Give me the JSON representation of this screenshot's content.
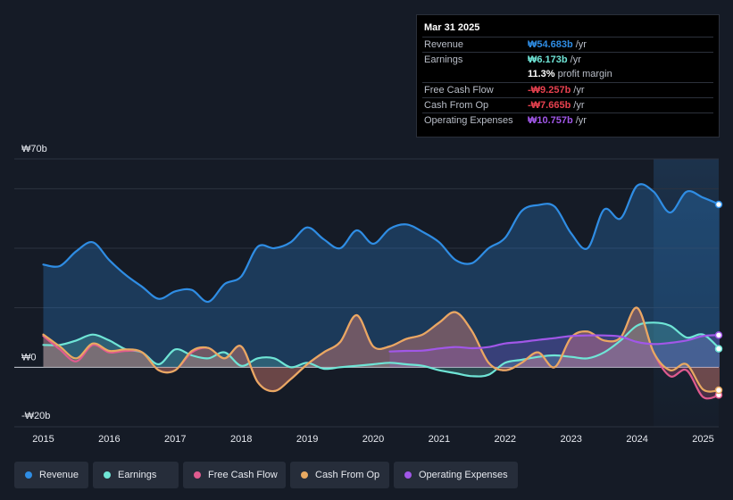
{
  "chart_data": {
    "type": "line",
    "title": "",
    "currency": "₩",
    "y_unit": "b",
    "ylim": [
      -20,
      70
    ],
    "y_tick_labels": [
      "₩70b",
      "₩0",
      "-₩20b"
    ],
    "x_tick_labels": [
      "2015",
      "2016",
      "2017",
      "2018",
      "2019",
      "2020",
      "2021",
      "2022",
      "2023",
      "2024",
      "2025"
    ],
    "xlim": [
      2014.95,
      2025.25
    ],
    "forecast_shade_from": 2024.25,
    "series": [
      {
        "name": "Revenue",
        "color": "#2f8de4",
        "fill": true,
        "x": [
          2015.0,
          2015.25,
          2015.5,
          2015.75,
          2016.0,
          2016.25,
          2016.5,
          2016.75,
          2017.0,
          2017.25,
          2017.5,
          2017.75,
          2018.0,
          2018.25,
          2018.5,
          2018.75,
          2019.0,
          2019.25,
          2019.5,
          2019.75,
          2020.0,
          2020.25,
          2020.5,
          2020.75,
          2021.0,
          2021.25,
          2021.5,
          2021.75,
          2022.0,
          2022.25,
          2022.5,
          2022.75,
          2023.0,
          2023.25,
          2023.5,
          2023.75,
          2024.0,
          2024.25,
          2024.5,
          2024.75,
          2025.0,
          2025.25
        ],
        "values": [
          34.5,
          34,
          39,
          42,
          36,
          31,
          27,
          23,
          25.5,
          26,
          22,
          28,
          30.5,
          40.5,
          40,
          42,
          47,
          43,
          40,
          46,
          41.5,
          46.5,
          48,
          45.5,
          42,
          36,
          35,
          40,
          43.5,
          52.5,
          54.5,
          54,
          45,
          40,
          53,
          50,
          61,
          59,
          52,
          59,
          57,
          54.7
        ]
      },
      {
        "name": "Earnings",
        "color": "#6fe5d6",
        "fill": true,
        "x": [
          2015.0,
          2015.25,
          2015.5,
          2015.75,
          2016.0,
          2016.25,
          2016.5,
          2016.75,
          2017.0,
          2017.25,
          2017.5,
          2017.75,
          2018.0,
          2018.25,
          2018.5,
          2018.75,
          2019.0,
          2019.25,
          2019.5,
          2019.75,
          2020.0,
          2020.25,
          2020.5,
          2020.75,
          2021.0,
          2021.25,
          2021.5,
          2021.75,
          2022.0,
          2022.25,
          2022.5,
          2022.75,
          2023.0,
          2023.25,
          2023.5,
          2023.75,
          2024.0,
          2024.25,
          2024.5,
          2024.75,
          2025.0,
          2025.25
        ],
        "values": [
          7.5,
          7.5,
          9,
          11,
          9,
          6,
          5,
          1,
          6,
          4,
          3,
          5,
          0.5,
          3,
          3,
          0,
          1.5,
          -0.5,
          0,
          0.5,
          1,
          1.5,
          1,
          0.5,
          -1,
          -2,
          -3,
          -2.5,
          1.5,
          2.5,
          3.5,
          4,
          3.5,
          3,
          5,
          9,
          14,
          15,
          14,
          10,
          11,
          6.2
        ]
      },
      {
        "name": "Free Cash Flow",
        "color": "#e05b8f",
        "fill": true,
        "x": [
          2015.0,
          2015.25,
          2015.5,
          2015.75,
          2016.0,
          2016.25,
          2016.5,
          2016.75,
          2017.0,
          2017.25,
          2017.5,
          2017.75,
          2018.0,
          2018.25,
          2018.5,
          2018.75,
          2019.0,
          2019.25,
          2019.5,
          2019.75,
          2020.0,
          2020.25,
          2020.5,
          2020.75,
          2021.0,
          2021.25,
          2021.5,
          2021.75,
          2022.0,
          2022.25,
          2022.5,
          2022.75,
          2023.0,
          2023.25,
          2023.5,
          2023.75,
          2024.0,
          2024.25,
          2024.5,
          2024.75,
          2025.0,
          2025.25
        ],
        "values": [
          10.5,
          6,
          2,
          7.5,
          5,
          5.5,
          5,
          -1,
          -1,
          5,
          6.5,
          3,
          7,
          -5,
          -8,
          -4,
          1,
          5,
          8.5,
          17.5,
          7,
          7,
          9.5,
          11,
          15,
          18.5,
          12,
          1.5,
          -1,
          1.5,
          5,
          0,
          10,
          12,
          9,
          10,
          20,
          5,
          -3,
          -1,
          -10,
          -9.3
        ]
      },
      {
        "name": "Cash From Op",
        "color": "#e8a961",
        "fill": true,
        "x": [
          2015.0,
          2015.25,
          2015.5,
          2015.75,
          2016.0,
          2016.25,
          2016.5,
          2016.75,
          2017.0,
          2017.25,
          2017.5,
          2017.75,
          2018.0,
          2018.25,
          2018.5,
          2018.75,
          2019.0,
          2019.25,
          2019.5,
          2019.75,
          2020.0,
          2020.25,
          2020.5,
          2020.75,
          2021.0,
          2021.25,
          2021.5,
          2021.75,
          2022.0,
          2022.25,
          2022.5,
          2022.75,
          2023.0,
          2023.25,
          2023.5,
          2023.75,
          2024.0,
          2024.25,
          2024.5,
          2024.75,
          2025.0,
          2025.25
        ],
        "values": [
          11,
          7,
          3,
          8,
          5.5,
          6,
          5,
          -1,
          -1,
          5.5,
          6.5,
          3,
          7,
          -5,
          -8,
          -4,
          1,
          5,
          8.5,
          17.5,
          7,
          7,
          9.5,
          11,
          15,
          18.5,
          12,
          1.5,
          -1,
          1.5,
          5,
          0,
          10,
          12,
          9,
          10,
          20,
          5,
          -1,
          1,
          -7.5,
          -7.7
        ]
      },
      {
        "name": "Operating Expenses",
        "color": "#a157e8",
        "fill": true,
        "x": [
          2020.25,
          2020.5,
          2020.75,
          2021.0,
          2021.25,
          2021.5,
          2021.75,
          2022.0,
          2022.25,
          2022.5,
          2022.75,
          2023.0,
          2023.25,
          2023.5,
          2023.75,
          2024.0,
          2024.25,
          2024.5,
          2024.75,
          2025.0,
          2025.25
        ],
        "values": [
          5.3,
          5.5,
          5.6,
          6.3,
          6.8,
          6.4,
          6.8,
          8,
          8.5,
          9.2,
          9.8,
          10.5,
          10.7,
          10.7,
          10.3,
          8.5,
          7.8,
          8.2,
          9,
          10.5,
          10.8
        ]
      }
    ]
  },
  "tooltip": {
    "date": "Mar 31 2025",
    "rows": [
      {
        "label": "Revenue",
        "value": "₩54.683b",
        "unit": "/yr",
        "color": "#2f8de4"
      },
      {
        "label": "Earnings",
        "value": "₩6.173b",
        "unit": "/yr",
        "color": "#6fe5d6"
      },
      {
        "label": "",
        "value": "11.3%",
        "unit": "profit margin",
        "color": "#ffffff"
      },
      {
        "label": "Free Cash Flow",
        "value": "-₩9.257b",
        "unit": "/yr",
        "color": "#e8414f"
      },
      {
        "label": "Cash From Op",
        "value": "-₩7.665b",
        "unit": "/yr",
        "color": "#e8414f"
      },
      {
        "label": "Operating Expenses",
        "value": "₩10.757b",
        "unit": "/yr",
        "color": "#a157e8"
      }
    ]
  },
  "legend": [
    {
      "label": "Revenue",
      "color": "#2f8de4"
    },
    {
      "label": "Earnings",
      "color": "#6fe5d6"
    },
    {
      "label": "Free Cash Flow",
      "color": "#e05b8f"
    },
    {
      "label": "Cash From Op",
      "color": "#e8a961"
    },
    {
      "label": "Operating Expenses",
      "color": "#a157e8"
    }
  ]
}
